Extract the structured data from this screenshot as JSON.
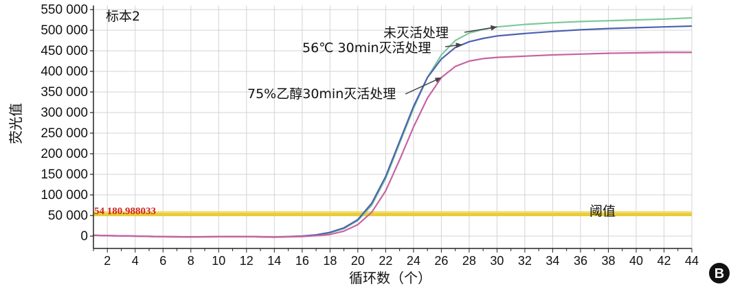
{
  "chart_data": {
    "type": "line",
    "title": "标本2",
    "xlabel": "循环数（个）",
    "ylabel": "荧光值",
    "xlim": [
      1,
      44
    ],
    "ylim": [
      -30000,
      560000
    ],
    "x_ticks": [
      2,
      4,
      6,
      8,
      10,
      12,
      14,
      16,
      18,
      20,
      22,
      24,
      26,
      28,
      30,
      32,
      34,
      36,
      38,
      40,
      42,
      44
    ],
    "y_ticks": [
      0,
      50000,
      100000,
      150000,
      200000,
      250000,
      300000,
      350000,
      400000,
      450000,
      500000,
      550000
    ],
    "y_tick_labels": [
      "0",
      "50 000",
      "100 000",
      "150 000",
      "200 000",
      "250 000",
      "300 000",
      "350 000",
      "400 000",
      "450 000",
      "500 000",
      "550 000"
    ],
    "grid": true,
    "threshold": {
      "value": 54180.988033,
      "label": "54 180.988033",
      "name": "阈值",
      "color": "#e8cc3a"
    },
    "series": [
      {
        "name": "未灭活处理",
        "color": "#7cc89a",
        "x": [
          1,
          2,
          4,
          6,
          8,
          10,
          12,
          14,
          16,
          17,
          18,
          19,
          20,
          21,
          22,
          23,
          24,
          25,
          26,
          27,
          28,
          29,
          30,
          32,
          34,
          36,
          38,
          40,
          42,
          44
        ],
        "y": [
          2000,
          1000,
          0,
          -1500,
          -2000,
          -1500,
          -1000,
          -2500,
          0,
          3000,
          8000,
          18000,
          38000,
          75000,
          140000,
          225000,
          310000,
          385000,
          440000,
          475000,
          493000,
          502000,
          508000,
          514000,
          518000,
          521000,
          523000,
          525000,
          527000,
          530000
        ]
      },
      {
        "name": "56℃ 30min灭活处理",
        "color": "#4b62b0",
        "x": [
          1,
          2,
          4,
          6,
          8,
          10,
          12,
          14,
          16,
          17,
          18,
          19,
          20,
          21,
          22,
          23,
          24,
          25,
          26,
          27,
          28,
          29,
          30,
          32,
          34,
          36,
          38,
          40,
          42,
          44
        ],
        "y": [
          2000,
          1000,
          0,
          -1500,
          -2000,
          -1500,
          -1000,
          -2500,
          0,
          3000,
          9000,
          20000,
          40000,
          80000,
          145000,
          230000,
          315000,
          385000,
          430000,
          458000,
          472000,
          480000,
          486000,
          492000,
          497000,
          501000,
          504000,
          506000,
          508000,
          510000
        ]
      },
      {
        "name": "75%乙醇30min灭活处理",
        "color": "#c763a0",
        "x": [
          1,
          2,
          4,
          6,
          8,
          10,
          12,
          14,
          16,
          17,
          18,
          19,
          20,
          21,
          22,
          23,
          24,
          25,
          26,
          27,
          28,
          29,
          30,
          32,
          34,
          36,
          38,
          40,
          42,
          44
        ],
        "y": [
          2000,
          1000,
          0,
          -1500,
          -2000,
          -1500,
          -1000,
          -2500,
          -1000,
          1000,
          4000,
          12000,
          28000,
          58000,
          110000,
          185000,
          265000,
          335000,
          385000,
          412000,
          425000,
          431000,
          434000,
          437000,
          440000,
          442000,
          444000,
          445000,
          446000,
          446000
        ]
      }
    ],
    "annotations": [
      {
        "text": "未灭活处理",
        "series": 0
      },
      {
        "text": "56℃ 30min灭活处理",
        "series": 1
      },
      {
        "text": "75%乙醇30min灭活处理",
        "series": 2
      }
    ],
    "panel_label": "B"
  }
}
